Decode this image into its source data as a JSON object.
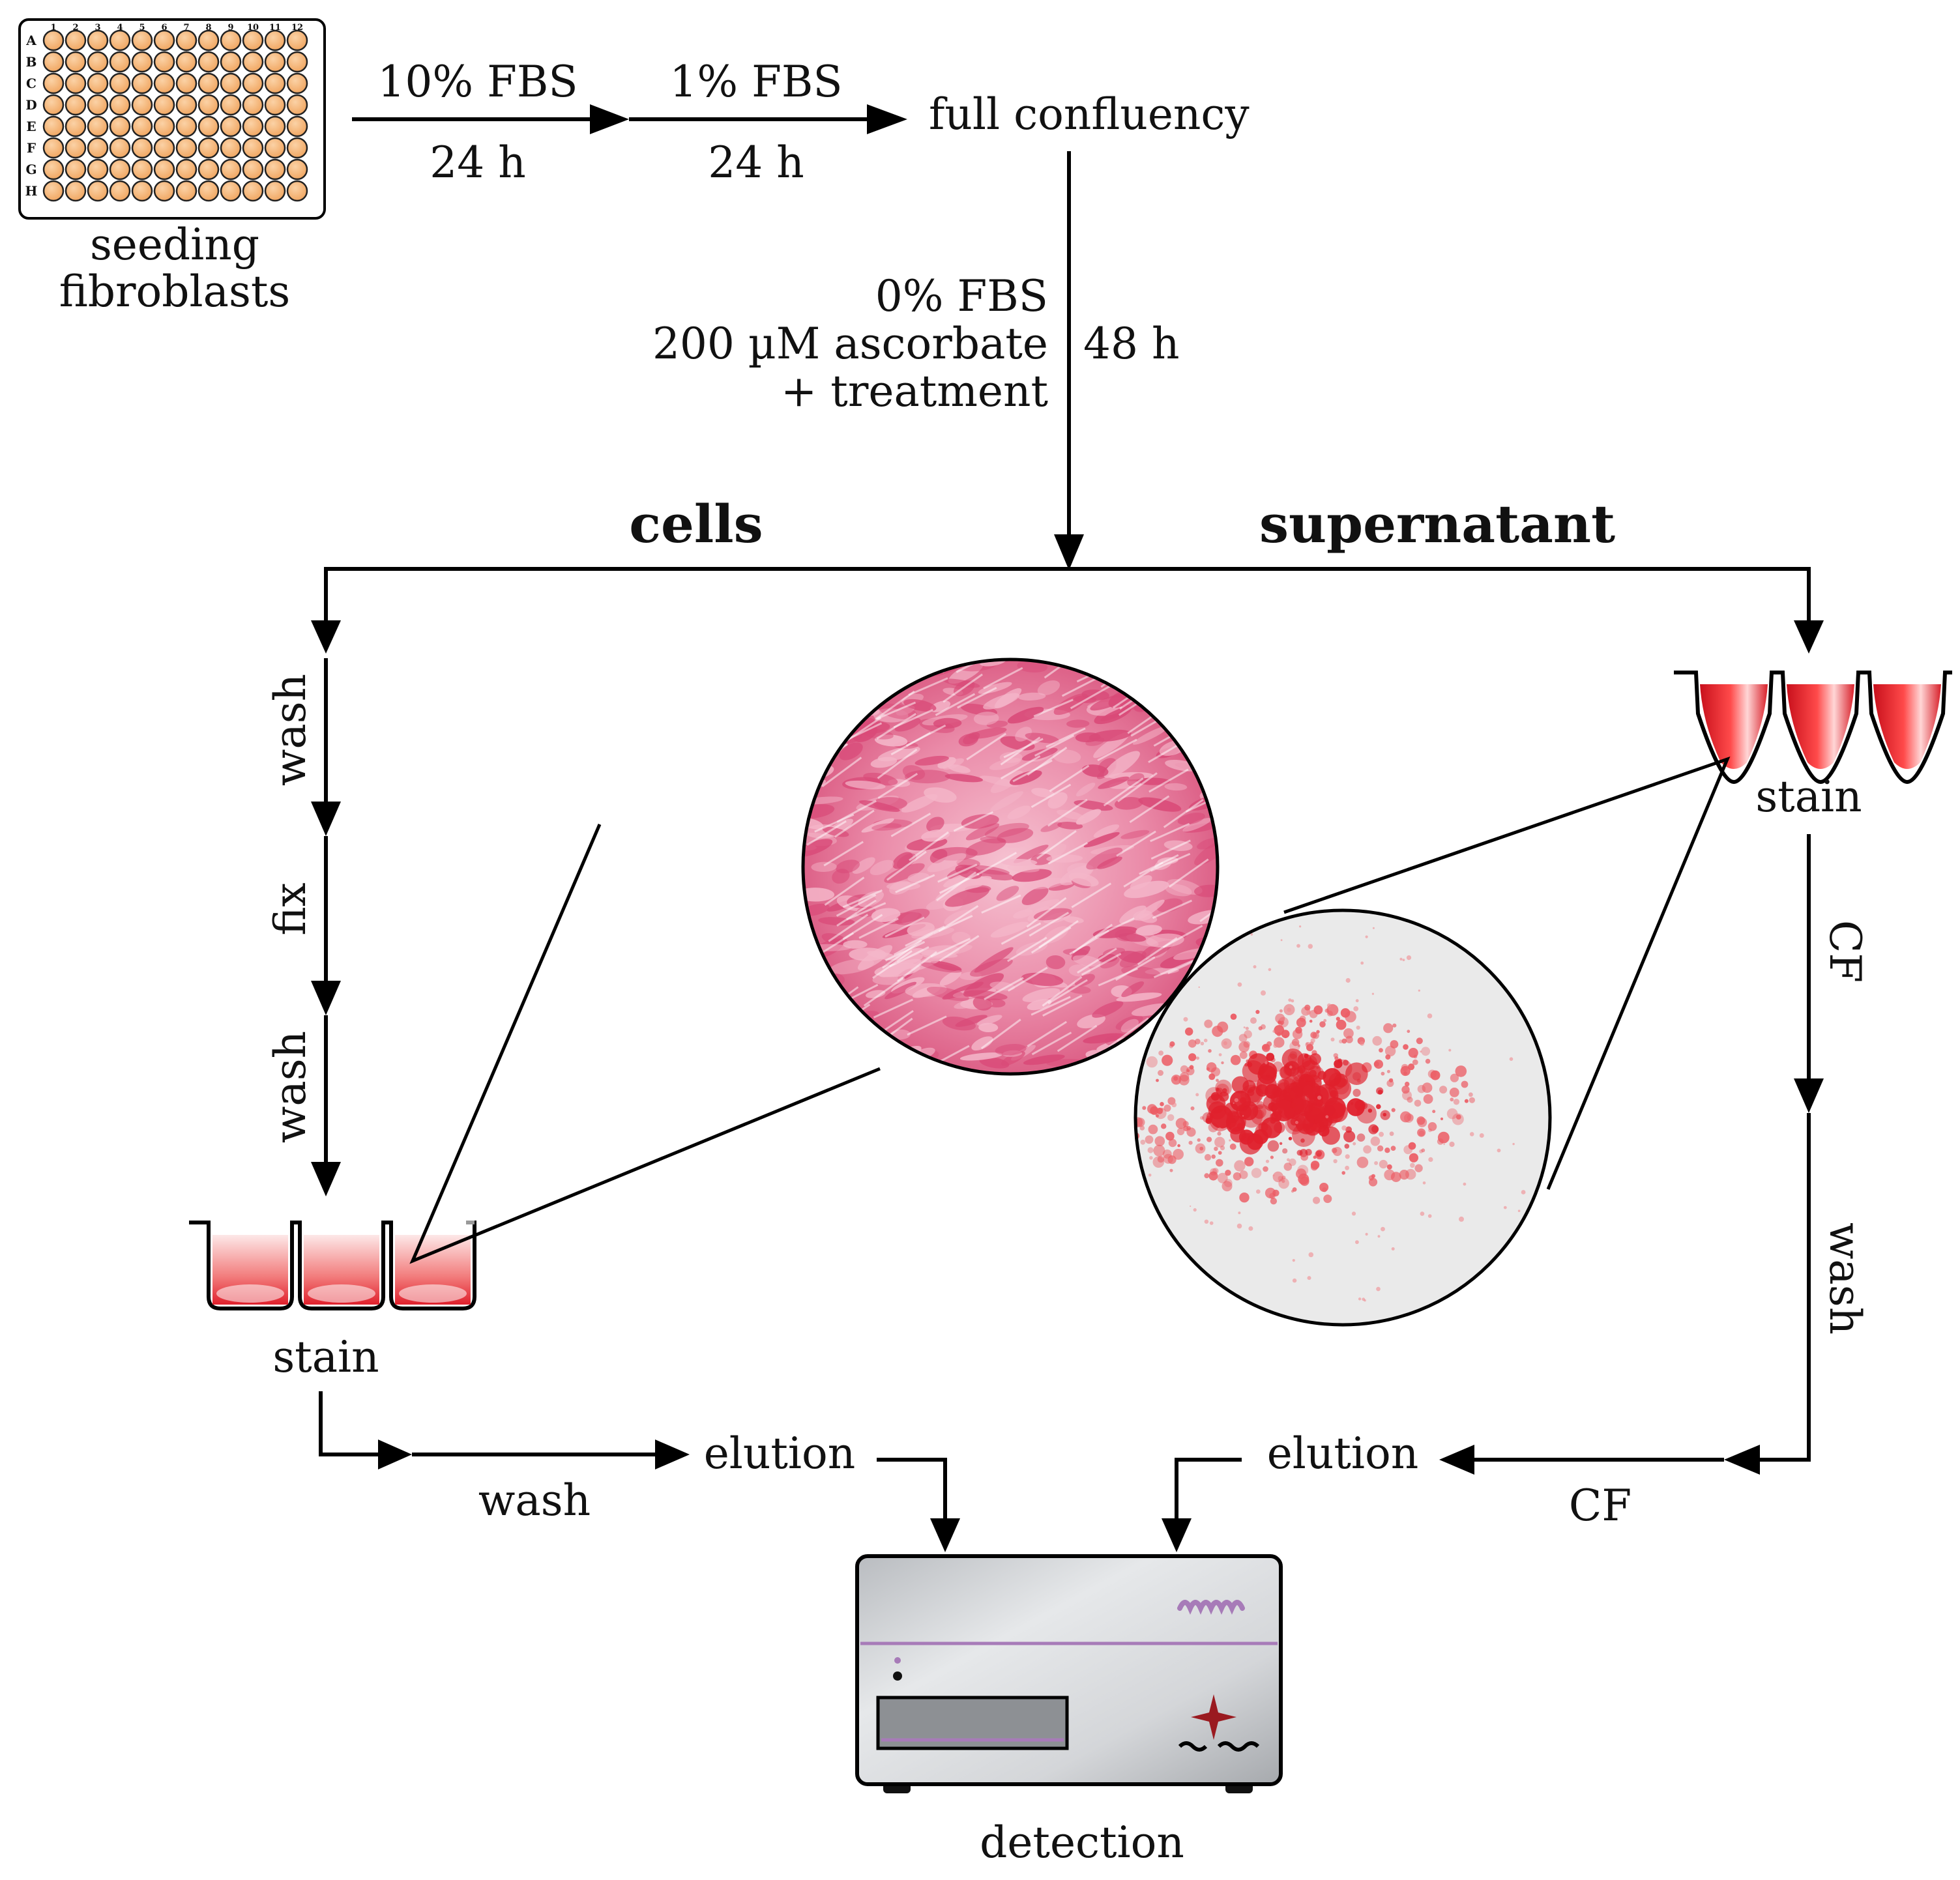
{
  "plate": {
    "column_labels": [
      "1",
      "2",
      "3",
      "4",
      "5",
      "6",
      "7",
      "8",
      "9",
      "10",
      "11",
      "12"
    ],
    "row_labels": [
      "A",
      "B",
      "C",
      "D",
      "E",
      "F",
      "G",
      "H"
    ],
    "caption_line1": "seeding",
    "caption_line2": "fibroblasts",
    "well_color": "#f3ab66"
  },
  "steps": {
    "step1_top": "10% FBS",
    "step1_bottom": "24 h",
    "step2_top": "1% FBS",
    "step2_bottom": "24 h",
    "confluency": "full confluency",
    "treatment_line1": "0% FBS",
    "treatment_line2": "200 µM ascorbate",
    "treatment_line3": "+ treatment",
    "treatment_time": "48 h"
  },
  "branches": {
    "cells": "cells",
    "supernatant": "supernatant"
  },
  "cells_path": {
    "wash1": "wash",
    "fix": "fix",
    "wash2": "wash",
    "stain": "stain",
    "wash3": "wash",
    "elution": "elution"
  },
  "supernatant_path": {
    "stain": "stain",
    "cf1": "CF",
    "wash": "wash",
    "cf2": "CF",
    "elution": "elution"
  },
  "detector": {
    "label": "detection",
    "accent_color": "#a77bb8"
  },
  "colors": {
    "stain_red": "#e0202c",
    "tissue_pink": "#e66a90"
  }
}
